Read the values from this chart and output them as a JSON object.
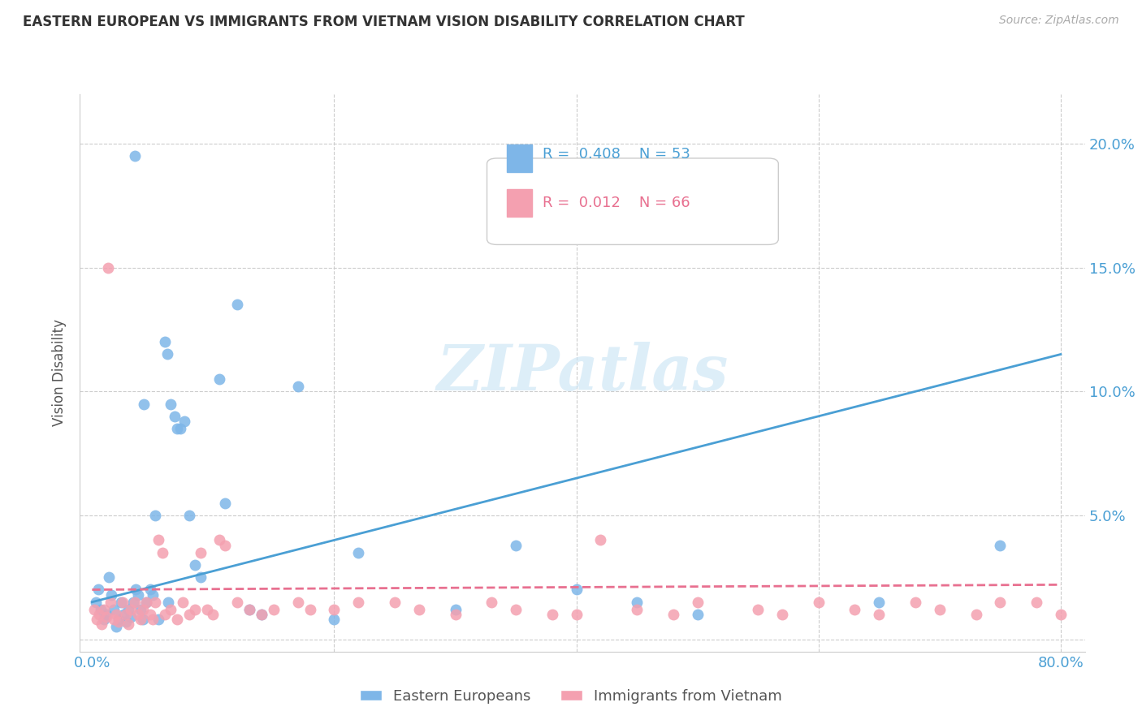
{
  "title": "EASTERN EUROPEAN VS IMMIGRANTS FROM VIETNAM VISION DISABILITY CORRELATION CHART",
  "source": "Source: ZipAtlas.com",
  "ylabel": "Vision Disability",
  "ytick_values": [
    0,
    5,
    10,
    15,
    20
  ],
  "xlim": [
    -1,
    82
  ],
  "ylim": [
    -0.5,
    22
  ],
  "legend_blue_r": "R = 0.408",
  "legend_blue_n": "N = 53",
  "legend_pink_r": "R = 0.012",
  "legend_pink_n": "N = 66",
  "legend_label_blue": "Eastern Europeans",
  "legend_label_pink": "Immigrants from Vietnam",
  "blue_color": "#7eb6e8",
  "pink_color": "#f4a0b0",
  "blue_line_color": "#4a9fd4",
  "pink_line_color": "#e87090",
  "watermark": "ZIPatlas",
  "blue_scatter_x": [
    0.3,
    0.5,
    0.7,
    1.0,
    1.2,
    1.4,
    1.6,
    1.8,
    2.0,
    2.2,
    2.4,
    2.6,
    2.8,
    3.0,
    3.2,
    3.4,
    3.6,
    3.8,
    4.0,
    4.2,
    4.5,
    4.8,
    5.0,
    5.5,
    6.0,
    6.2,
    6.5,
    6.8,
    7.0,
    7.3,
    7.6,
    8.0,
    8.5,
    10.5,
    11.0,
    12.0,
    14.0,
    17.0,
    20.0,
    22.0,
    30.0,
    35.0,
    40.0,
    45.0,
    50.0,
    65.0,
    75.0,
    3.5,
    4.3,
    5.2,
    13.0,
    6.3,
    9.0
  ],
  "blue_scatter_y": [
    1.5,
    2.0,
    1.2,
    0.8,
    1.0,
    2.5,
    1.8,
    1.2,
    0.5,
    0.8,
    1.5,
    1.0,
    0.7,
    1.2,
    0.9,
    1.5,
    2.0,
    1.8,
    1.2,
    0.8,
    1.5,
    2.0,
    1.8,
    0.8,
    12.0,
    11.5,
    9.5,
    9.0,
    8.5,
    8.5,
    8.8,
    5.0,
    3.0,
    10.5,
    5.5,
    13.5,
    1.0,
    10.2,
    0.8,
    3.5,
    1.2,
    3.8,
    2.0,
    1.5,
    1.0,
    1.5,
    3.8,
    19.5,
    9.5,
    5.0,
    1.2,
    1.5,
    2.5
  ],
  "pink_scatter_x": [
    0.2,
    0.4,
    0.6,
    0.8,
    1.0,
    1.2,
    1.5,
    1.8,
    2.0,
    2.2,
    2.5,
    2.8,
    3.0,
    3.2,
    3.5,
    3.8,
    4.0,
    4.2,
    4.5,
    4.8,
    5.0,
    5.2,
    5.5,
    5.8,
    6.0,
    6.5,
    7.0,
    7.5,
    8.0,
    8.5,
    9.0,
    9.5,
    10.0,
    10.5,
    11.0,
    12.0,
    13.0,
    14.0,
    15.0,
    17.0,
    18.0,
    20.0,
    22.0,
    25.0,
    27.0,
    30.0,
    33.0,
    35.0,
    38.0,
    40.0,
    42.0,
    45.0,
    48.0,
    50.0,
    55.0,
    57.0,
    60.0,
    63.0,
    65.0,
    68.0,
    70.0,
    73.0,
    75.0,
    78.0,
    80.0,
    1.3
  ],
  "pink_scatter_y": [
    1.2,
    0.8,
    1.0,
    0.6,
    1.2,
    0.9,
    1.5,
    0.8,
    1.0,
    0.7,
    1.5,
    1.0,
    0.6,
    1.2,
    1.5,
    1.0,
    0.8,
    1.2,
    1.5,
    1.0,
    0.8,
    1.5,
    4.0,
    3.5,
    1.0,
    1.2,
    0.8,
    1.5,
    1.0,
    1.2,
    3.5,
    1.2,
    1.0,
    4.0,
    3.8,
    1.5,
    1.2,
    1.0,
    1.2,
    1.5,
    1.2,
    1.2,
    1.5,
    1.5,
    1.2,
    1.0,
    1.5,
    1.2,
    1.0,
    1.0,
    4.0,
    1.2,
    1.0,
    1.5,
    1.2,
    1.0,
    1.5,
    1.2,
    1.0,
    1.5,
    1.2,
    1.0,
    1.5,
    1.5,
    1.0,
    15.0
  ],
  "blue_line_x": [
    0,
    80
  ],
  "blue_line_y": [
    1.5,
    11.5
  ],
  "pink_line_x": [
    0,
    80
  ],
  "pink_line_y": [
    2.0,
    2.2
  ]
}
